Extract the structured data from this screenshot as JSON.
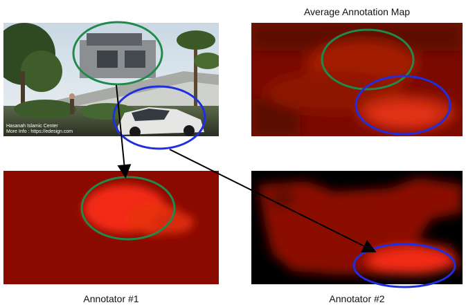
{
  "captions": {
    "average": "Average Annotation Map",
    "annotator1": "Annotator #1",
    "annotator2": "Annotator #2"
  },
  "photo_watermark": {
    "line1": "Hasanah Islamic Center",
    "line2": "More Info : https://edesign.com"
  },
  "colors": {
    "green_ellipse": "#1f8a4c",
    "blue_ellipse": "#1f2fe0",
    "heatmap_base": "#8b0a00",
    "heatmap_hot": "#f22c12",
    "arrow": "#000000"
  }
}
